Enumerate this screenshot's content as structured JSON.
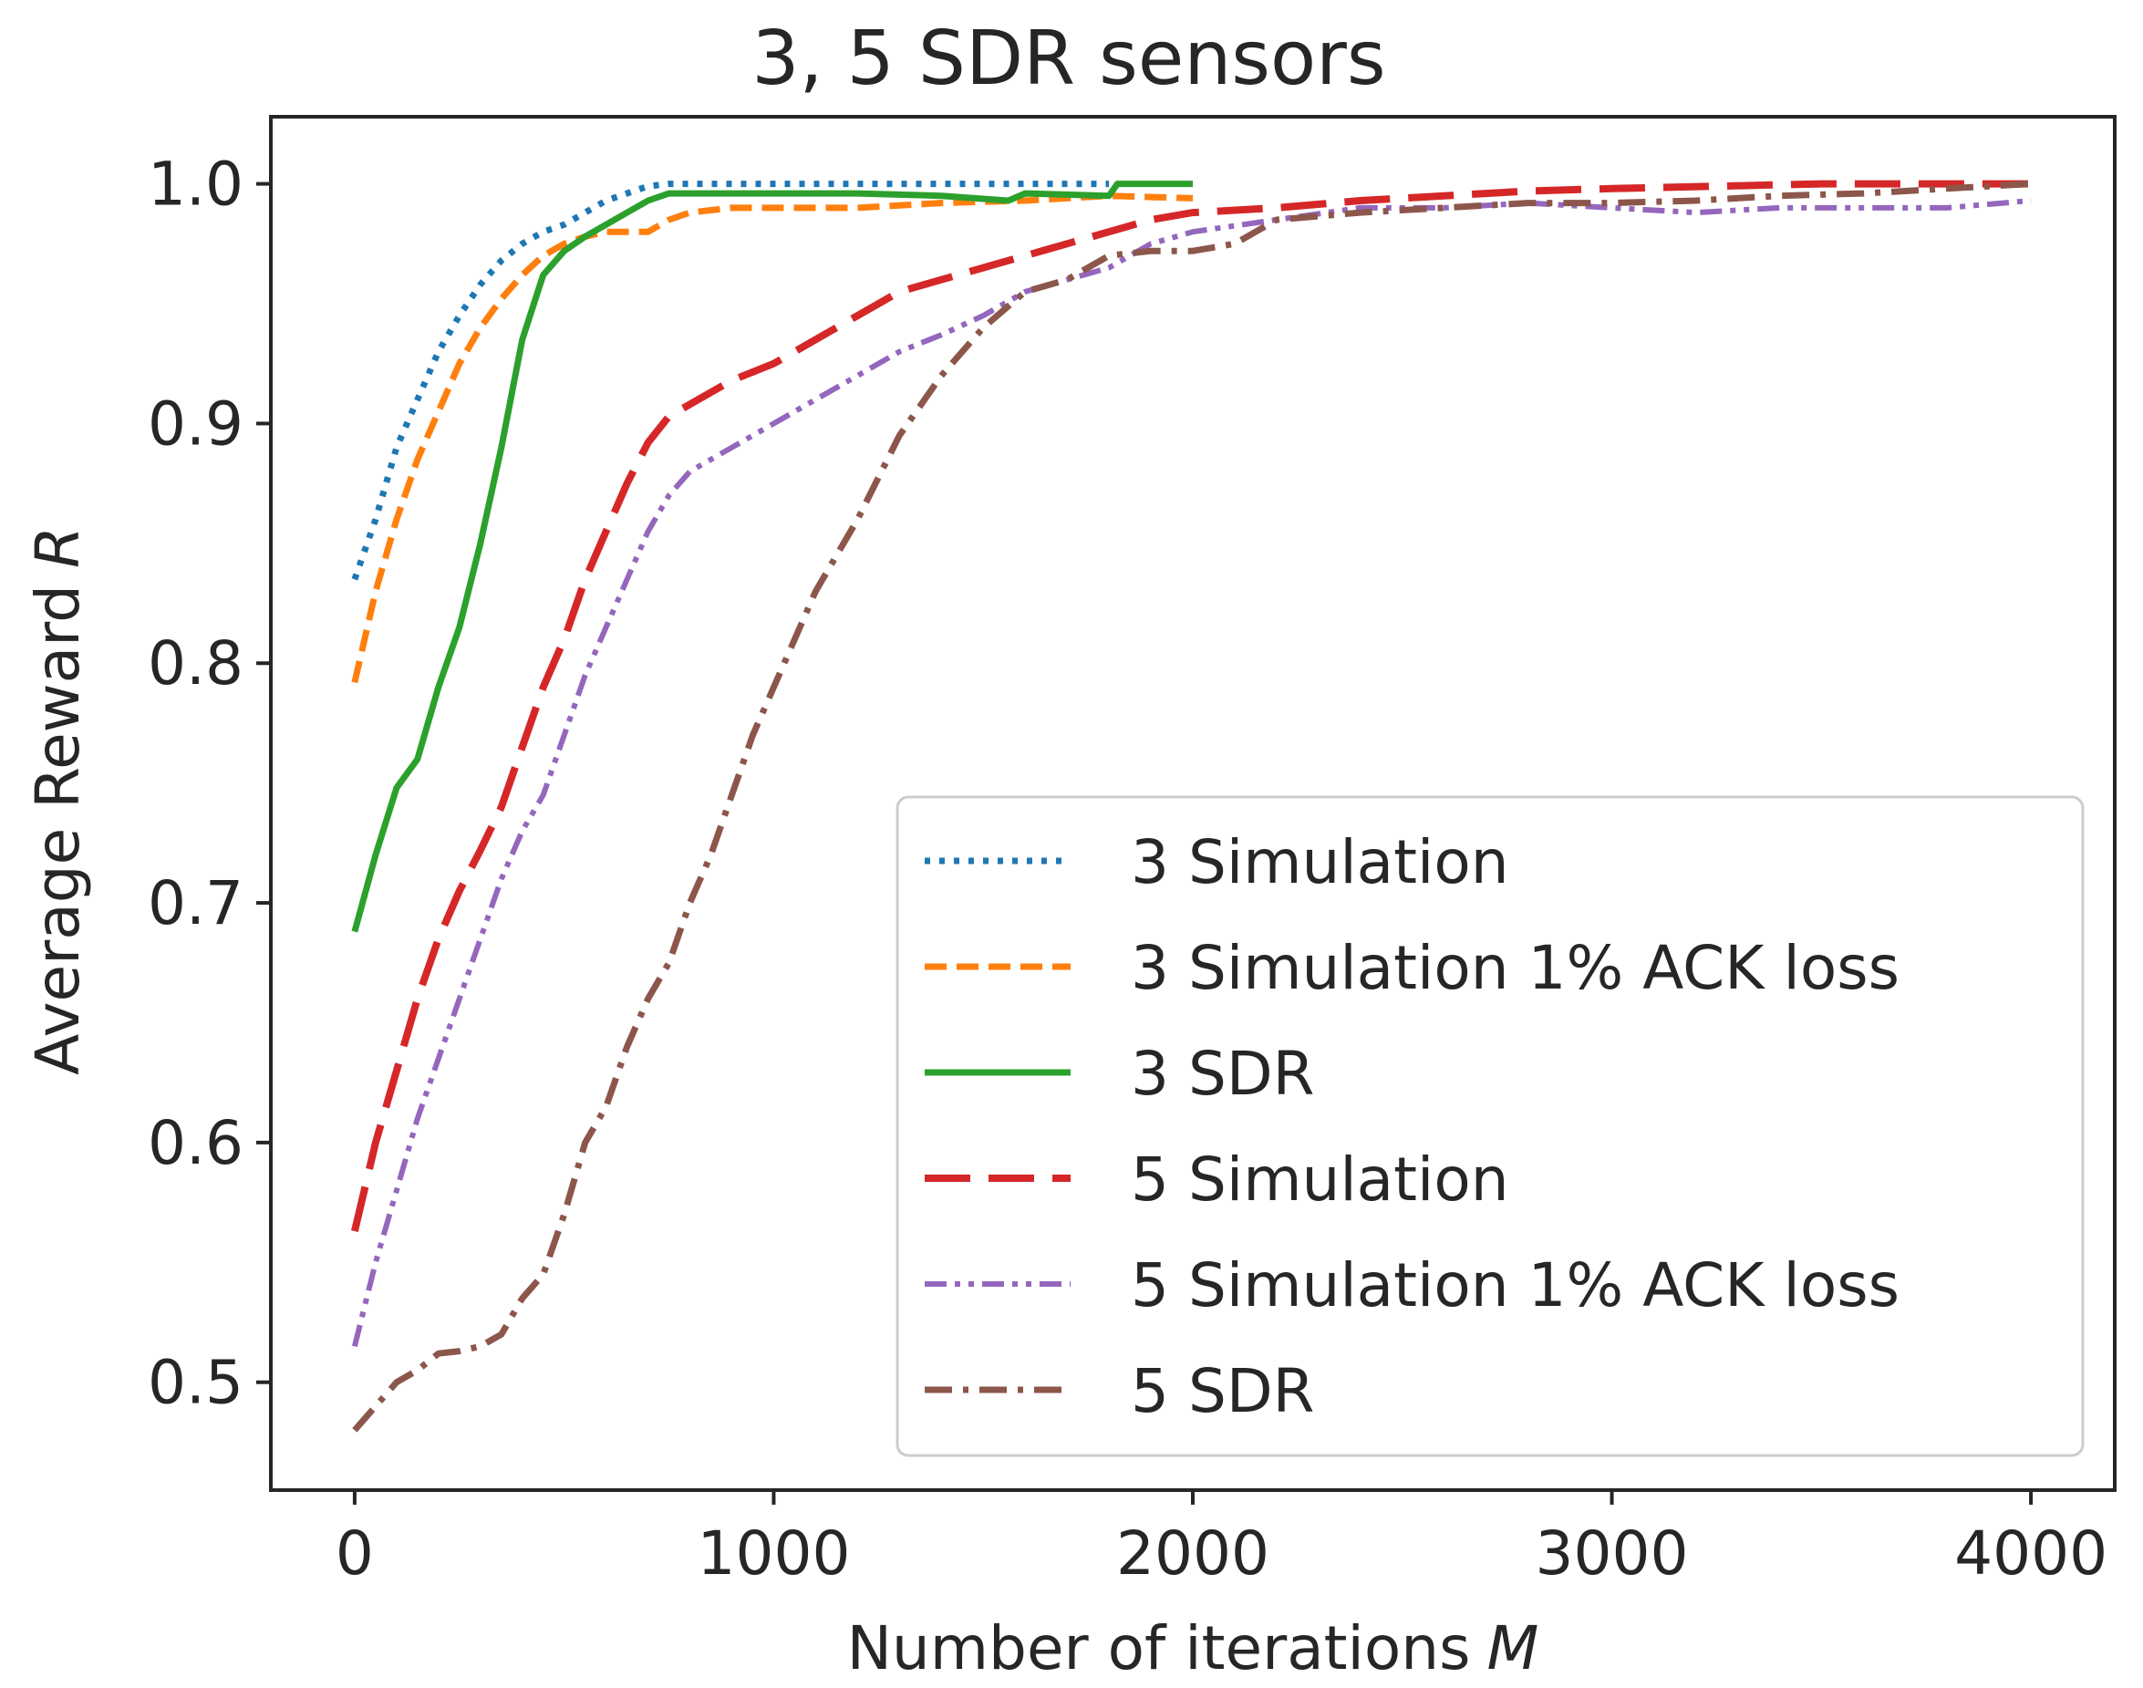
{
  "chart_data": {
    "type": "line",
    "title": "3, 5 SDR sensors",
    "xlabel": "Number of iterations",
    "xlabel_var": "M",
    "ylabel": "Average Reward",
    "ylabel_var": "R",
    "xlim": [
      -200,
      4200
    ],
    "ylim": [
      0.455,
      1.028
    ],
    "xticks": [
      0,
      1000,
      2000,
      3000,
      4000
    ],
    "xtick_labels": [
      "0",
      "1000",
      "2000",
      "3000",
      "4000"
    ],
    "yticks": [
      0.5,
      0.6,
      0.7,
      0.8,
      0.9,
      1.0
    ],
    "ytick_labels": [
      "0.5",
      "0.6",
      "0.7",
      "0.8",
      "0.9",
      "1.0"
    ],
    "grid": false,
    "legend_position": "lower-right",
    "series": [
      {
        "name": "3 Simulation",
        "color": "#1f77b4",
        "style": "dotted",
        "x": [
          0,
          50,
          100,
          150,
          200,
          250,
          300,
          350,
          400,
          450,
          500,
          550,
          600,
          650,
          700,
          750,
          800,
          1000,
          1200,
          1400,
          1600,
          1800
        ],
        "y": [
          0.835,
          0.86,
          0.89,
          0.91,
          0.93,
          0.945,
          0.958,
          0.968,
          0.975,
          0.98,
          0.983,
          0.988,
          0.993,
          0.996,
          0.999,
          1.0,
          1.0,
          1.0,
          1.0,
          1.0,
          1.0,
          1.0
        ]
      },
      {
        "name": "3 Simulation 1% ACK loss",
        "color": "#ff7f0e",
        "style": "dashed",
        "x": [
          0,
          50,
          100,
          150,
          200,
          250,
          300,
          350,
          400,
          450,
          500,
          550,
          600,
          650,
          700,
          750,
          800,
          900,
          1000,
          1200,
          1400,
          1600,
          1800,
          2000
        ],
        "y": [
          0.792,
          0.83,
          0.86,
          0.885,
          0.905,
          0.925,
          0.94,
          0.952,
          0.962,
          0.97,
          0.975,
          0.978,
          0.98,
          0.98,
          0.98,
          0.985,
          0.988,
          0.99,
          0.99,
          0.99,
          0.992,
          0.993,
          0.995,
          0.994
        ]
      },
      {
        "name": "3 SDR",
        "color": "#2ca02c",
        "style": "solid",
        "x": [
          0,
          50,
          100,
          150,
          200,
          250,
          300,
          350,
          400,
          450,
          500,
          550,
          600,
          650,
          700,
          750,
          800,
          1000,
          1200,
          1400,
          1560,
          1600,
          1800,
          1820,
          2000
        ],
        "y": [
          0.688,
          0.72,
          0.748,
          0.76,
          0.79,
          0.815,
          0.85,
          0.89,
          0.935,
          0.962,
          0.972,
          0.978,
          0.983,
          0.988,
          0.993,
          0.996,
          0.996,
          0.996,
          0.996,
          0.995,
          0.993,
          0.996,
          0.995,
          1.0,
          1.0
        ]
      },
      {
        "name": "5 Simulation",
        "color": "#d62728",
        "style": "longdash",
        "x": [
          0,
          50,
          100,
          150,
          200,
          250,
          300,
          350,
          400,
          450,
          500,
          550,
          600,
          650,
          700,
          750,
          800,
          900,
          1000,
          1100,
          1200,
          1300,
          1400,
          1500,
          1600,
          1700,
          1800,
          1900,
          2000,
          2200,
          2400,
          2600,
          2800,
          3000,
          3500,
          4000
        ],
        "y": [
          0.563,
          0.6,
          0.63,
          0.66,
          0.685,
          0.705,
          0.722,
          0.74,
          0.765,
          0.79,
          0.81,
          0.835,
          0.855,
          0.875,
          0.892,
          0.903,
          0.908,
          0.918,
          0.925,
          0.935,
          0.945,
          0.955,
          0.96,
          0.965,
          0.97,
          0.975,
          0.98,
          0.985,
          0.988,
          0.99,
          0.993,
          0.995,
          0.997,
          0.998,
          1.0,
          1.0
        ]
      },
      {
        "name": "5 Simulation 1% ACK loss",
        "color": "#9467bd",
        "style": "dashdotdot",
        "x": [
          0,
          50,
          100,
          150,
          200,
          250,
          300,
          350,
          400,
          450,
          500,
          550,
          600,
          650,
          700,
          750,
          800,
          900,
          1000,
          1100,
          1200,
          1300,
          1400,
          1500,
          1600,
          1700,
          1800,
          1900,
          2000,
          2200,
          2400,
          2600,
          2800,
          3000,
          3200,
          3400,
          3600,
          3800,
          4000
        ],
        "y": [
          0.515,
          0.55,
          0.58,
          0.61,
          0.635,
          0.66,
          0.685,
          0.71,
          0.73,
          0.745,
          0.77,
          0.795,
          0.815,
          0.835,
          0.855,
          0.87,
          0.88,
          0.89,
          0.9,
          0.91,
          0.92,
          0.93,
          0.937,
          0.945,
          0.955,
          0.96,
          0.965,
          0.975,
          0.98,
          0.985,
          0.99,
          0.99,
          0.992,
          0.99,
          0.988,
          0.99,
          0.99,
          0.99,
          0.993
        ]
      },
      {
        "name": "5 SDR",
        "color": "#8c564b",
        "style": "dashdot",
        "x": [
          0,
          50,
          100,
          150,
          200,
          250,
          300,
          350,
          400,
          450,
          500,
          550,
          600,
          650,
          700,
          750,
          800,
          850,
          900,
          950,
          1000,
          1100,
          1200,
          1300,
          1400,
          1500,
          1600,
          1700,
          1800,
          1900,
          2000,
          2100,
          2200,
          2400,
          2600,
          2800,
          3000,
          3200,
          3400,
          3600,
          3800,
          4000
        ],
        "y": [
          0.48,
          0.49,
          0.5,
          0.505,
          0.512,
          0.513,
          0.515,
          0.52,
          0.535,
          0.545,
          0.57,
          0.6,
          0.615,
          0.64,
          0.66,
          0.675,
          0.7,
          0.72,
          0.745,
          0.77,
          0.79,
          0.83,
          0.86,
          0.895,
          0.92,
          0.94,
          0.955,
          0.96,
          0.97,
          0.972,
          0.972,
          0.975,
          0.985,
          0.988,
          0.99,
          0.992,
          0.992,
          0.993,
          0.995,
          0.996,
          0.998,
          1.0
        ]
      }
    ]
  }
}
